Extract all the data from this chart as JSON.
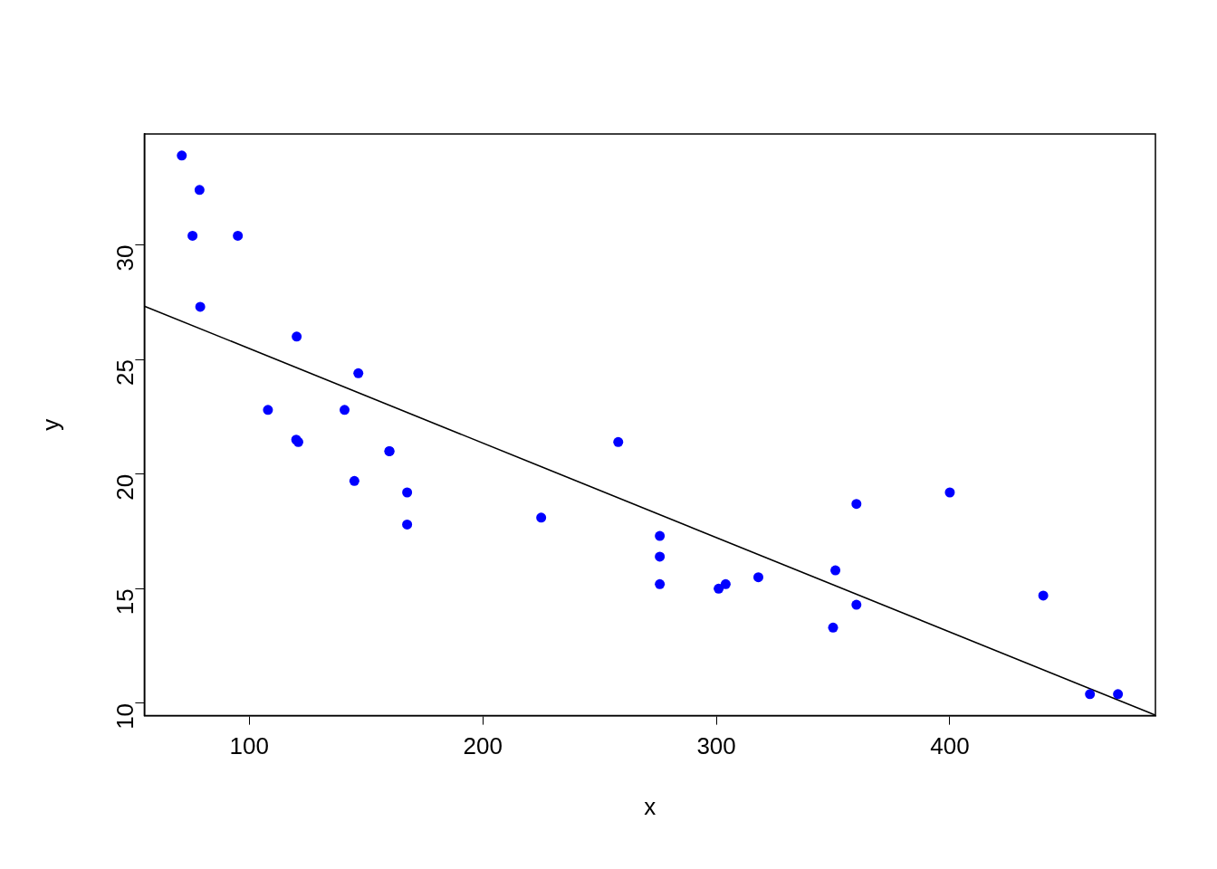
{
  "chart_data": {
    "type": "scatter",
    "xlabel": "x",
    "ylabel": "y",
    "xlim": [
      55.06,
      488.04
    ],
    "xticks": [
      100,
      200,
      300,
      400
    ],
    "ylim": [
      9.46,
      34.84
    ],
    "yticks": [
      10,
      15,
      20,
      25,
      30
    ],
    "grid": false,
    "legend": false,
    "series": [
      {
        "marker": "circle",
        "color": "#0000ff",
        "x": [
          160,
          160,
          108,
          258,
          360,
          225,
          360,
          146.7,
          140.8,
          167.6,
          167.6,
          275.8,
          275.8,
          275.8,
          472,
          460,
          440,
          78.7,
          75.7,
          71.1,
          120.1,
          318,
          304,
          350,
          400,
          79,
          120.3,
          95.1,
          351,
          145,
          301,
          121
        ],
        "values": [
          21.0,
          21.0,
          22.8,
          21.4,
          18.7,
          18.1,
          14.3,
          24.4,
          22.8,
          19.2,
          17.8,
          16.4,
          17.3,
          15.2,
          10.4,
          10.4,
          14.7,
          32.4,
          30.4,
          33.9,
          21.5,
          15.5,
          15.2,
          13.3,
          19.2,
          27.3,
          26.0,
          30.4,
          15.8,
          19.7,
          15.0,
          21.4
        ]
      },
      {
        "type": "line",
        "marker": "none",
        "color": "#000000",
        "x": [
          55.06,
          488.04
        ],
        "values": [
          27.33,
          9.48
        ]
      }
    ]
  }
}
